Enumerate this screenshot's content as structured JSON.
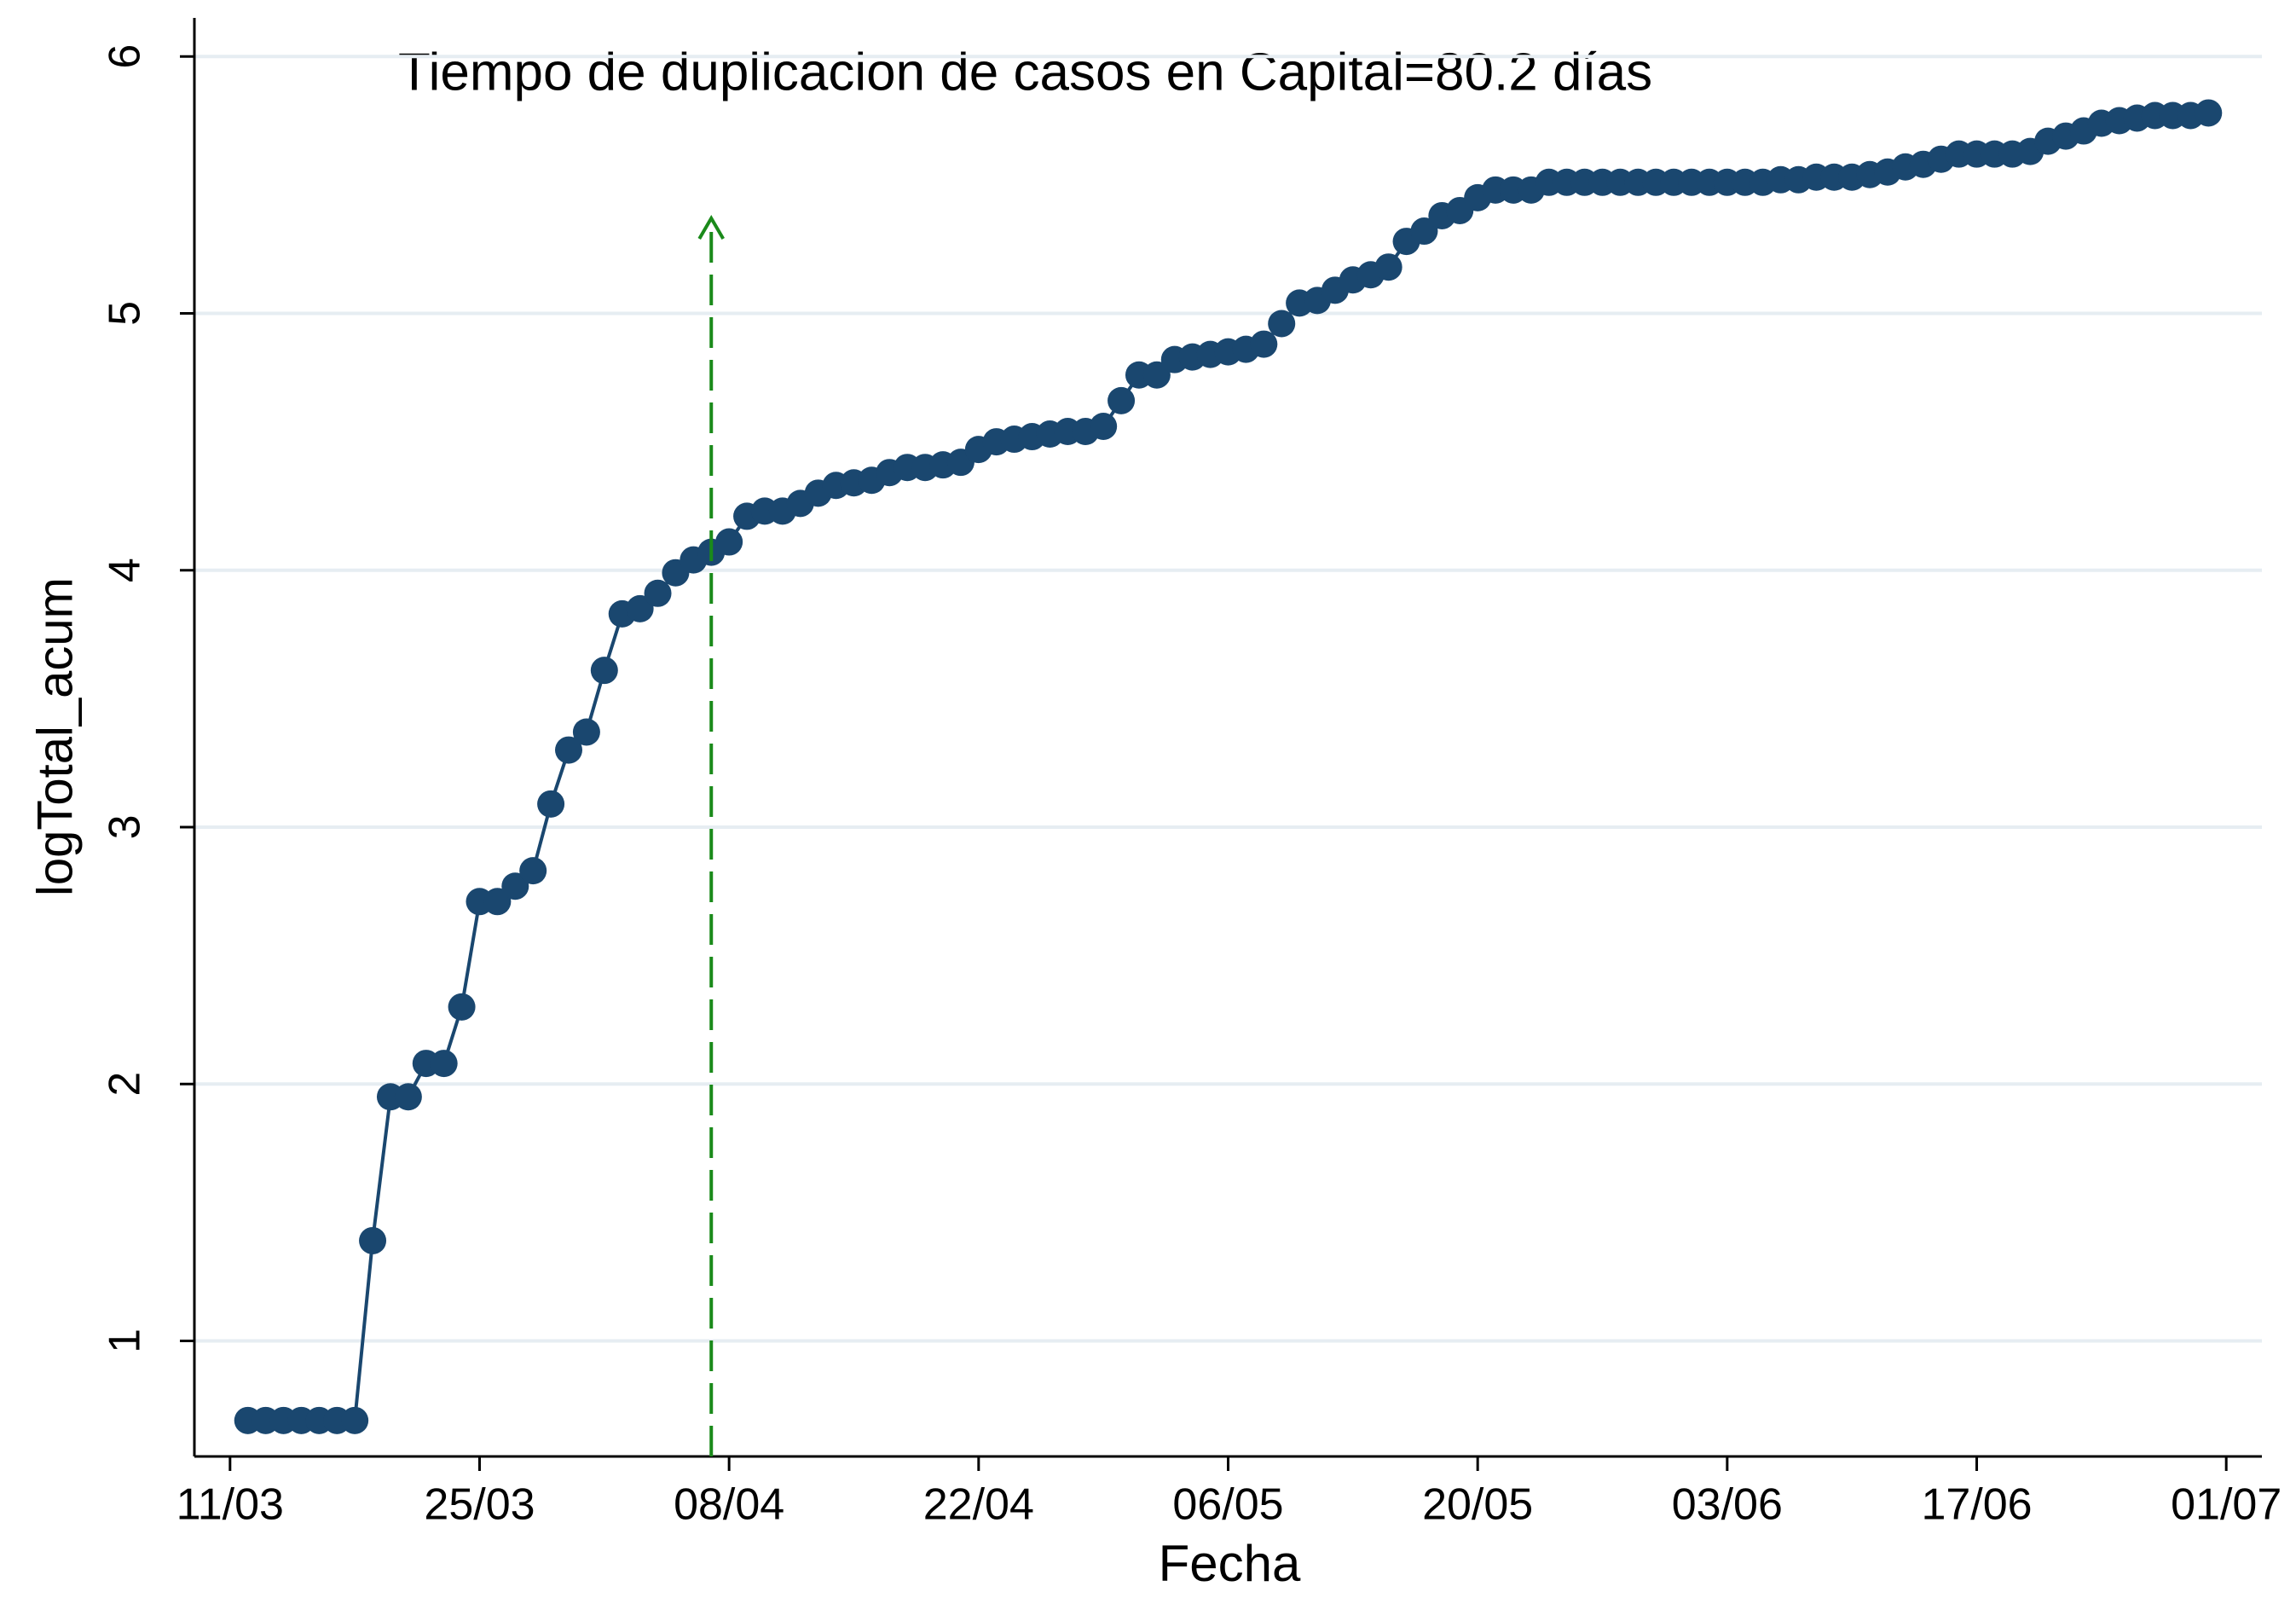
{
  "chart_data": {
    "type": "line",
    "annotation": "Tiempo de duplicacion de casos en Capital=80.2 días",
    "xlabel": "Fecha",
    "ylabel": "logTotal_acum",
    "x": [
      "12/03",
      "13/03",
      "14/03",
      "15/03",
      "16/03",
      "17/03",
      "18/03",
      "19/03",
      "20/03",
      "21/03",
      "22/03",
      "23/03",
      "24/03",
      "25/03",
      "26/03",
      "27/03",
      "28/03",
      "29/03",
      "30/03",
      "31/03",
      "01/04",
      "02/04",
      "03/04",
      "04/04",
      "05/04",
      "06/04",
      "07/04",
      "08/04",
      "09/04",
      "10/04",
      "11/04",
      "12/04",
      "13/04",
      "14/04",
      "15/04",
      "16/04",
      "17/04",
      "18/04",
      "19/04",
      "20/04",
      "21/04",
      "22/04",
      "23/04",
      "24/04",
      "25/04",
      "26/04",
      "27/04",
      "28/04",
      "29/04",
      "30/04",
      "01/05",
      "02/05",
      "03/05",
      "04/05",
      "05/05",
      "06/05",
      "07/05",
      "08/05",
      "09/05",
      "10/05",
      "11/05",
      "12/05",
      "13/05",
      "14/05",
      "15/05",
      "16/05",
      "17/05",
      "18/05",
      "19/05",
      "20/05",
      "21/05",
      "22/05",
      "23/05",
      "24/05",
      "25/05",
      "26/05",
      "27/05",
      "28/05",
      "29/05",
      "30/05",
      "31/05",
      "01/06",
      "02/06",
      "03/06",
      "04/06",
      "05/06",
      "06/06",
      "07/06",
      "08/06",
      "09/06",
      "10/06",
      "11/06",
      "12/06",
      "13/06",
      "14/06",
      "15/06",
      "16/06",
      "17/06",
      "18/06",
      "19/06",
      "20/06",
      "21/06",
      "22/06",
      "23/06",
      "24/06",
      "25/06",
      "26/06",
      "27/06",
      "28/06",
      "29/06",
      "30/06"
    ],
    "values": [
      0.69,
      0.69,
      0.69,
      0.69,
      0.69,
      0.69,
      0.69,
      1.39,
      1.95,
      1.95,
      2.08,
      2.08,
      2.3,
      2.71,
      2.71,
      2.77,
      2.83,
      3.09,
      3.3,
      3.37,
      3.61,
      3.83,
      3.85,
      3.91,
      3.99,
      4.04,
      4.07,
      4.11,
      4.21,
      4.23,
      4.23,
      4.26,
      4.3,
      4.33,
      4.34,
      4.35,
      4.38,
      4.4,
      4.4,
      4.41,
      4.42,
      4.47,
      4.5,
      4.51,
      4.52,
      4.53,
      4.54,
      4.54,
      4.56,
      4.66,
      4.76,
      4.76,
      4.82,
      4.83,
      4.84,
      4.85,
      4.86,
      4.88,
      4.96,
      5.04,
      5.05,
      5.09,
      5.13,
      5.15,
      5.18,
      5.28,
      5.32,
      5.38,
      5.4,
      5.45,
      5.48,
      5.48,
      5.48,
      5.51,
      5.51,
      5.51,
      5.51,
      5.51,
      5.51,
      5.51,
      5.51,
      5.51,
      5.51,
      5.51,
      5.51,
      5.51,
      5.52,
      5.52,
      5.53,
      5.53,
      5.53,
      5.54,
      5.55,
      5.57,
      5.58,
      5.6,
      5.62,
      5.62,
      5.62,
      5.62,
      5.63,
      5.67,
      5.69,
      5.71,
      5.74,
      5.75,
      5.76,
      5.77,
      5.77,
      5.77,
      5.78
    ],
    "color": "#1a476f",
    "markers": true,
    "xlim": [
      "09/03",
      "03/07"
    ],
    "xticks": [
      "11/03",
      "25/03",
      "08/04",
      "22/04",
      "06/05",
      "20/05",
      "03/06",
      "17/06",
      "01/07"
    ],
    "ylim": [
      0.55,
      6.15
    ],
    "yticks": [
      1,
      2,
      3,
      4,
      5,
      6
    ],
    "grid": true,
    "arrow": {
      "x": "07/04",
      "y": 5.37,
      "color": "#1a8a1a"
    }
  }
}
